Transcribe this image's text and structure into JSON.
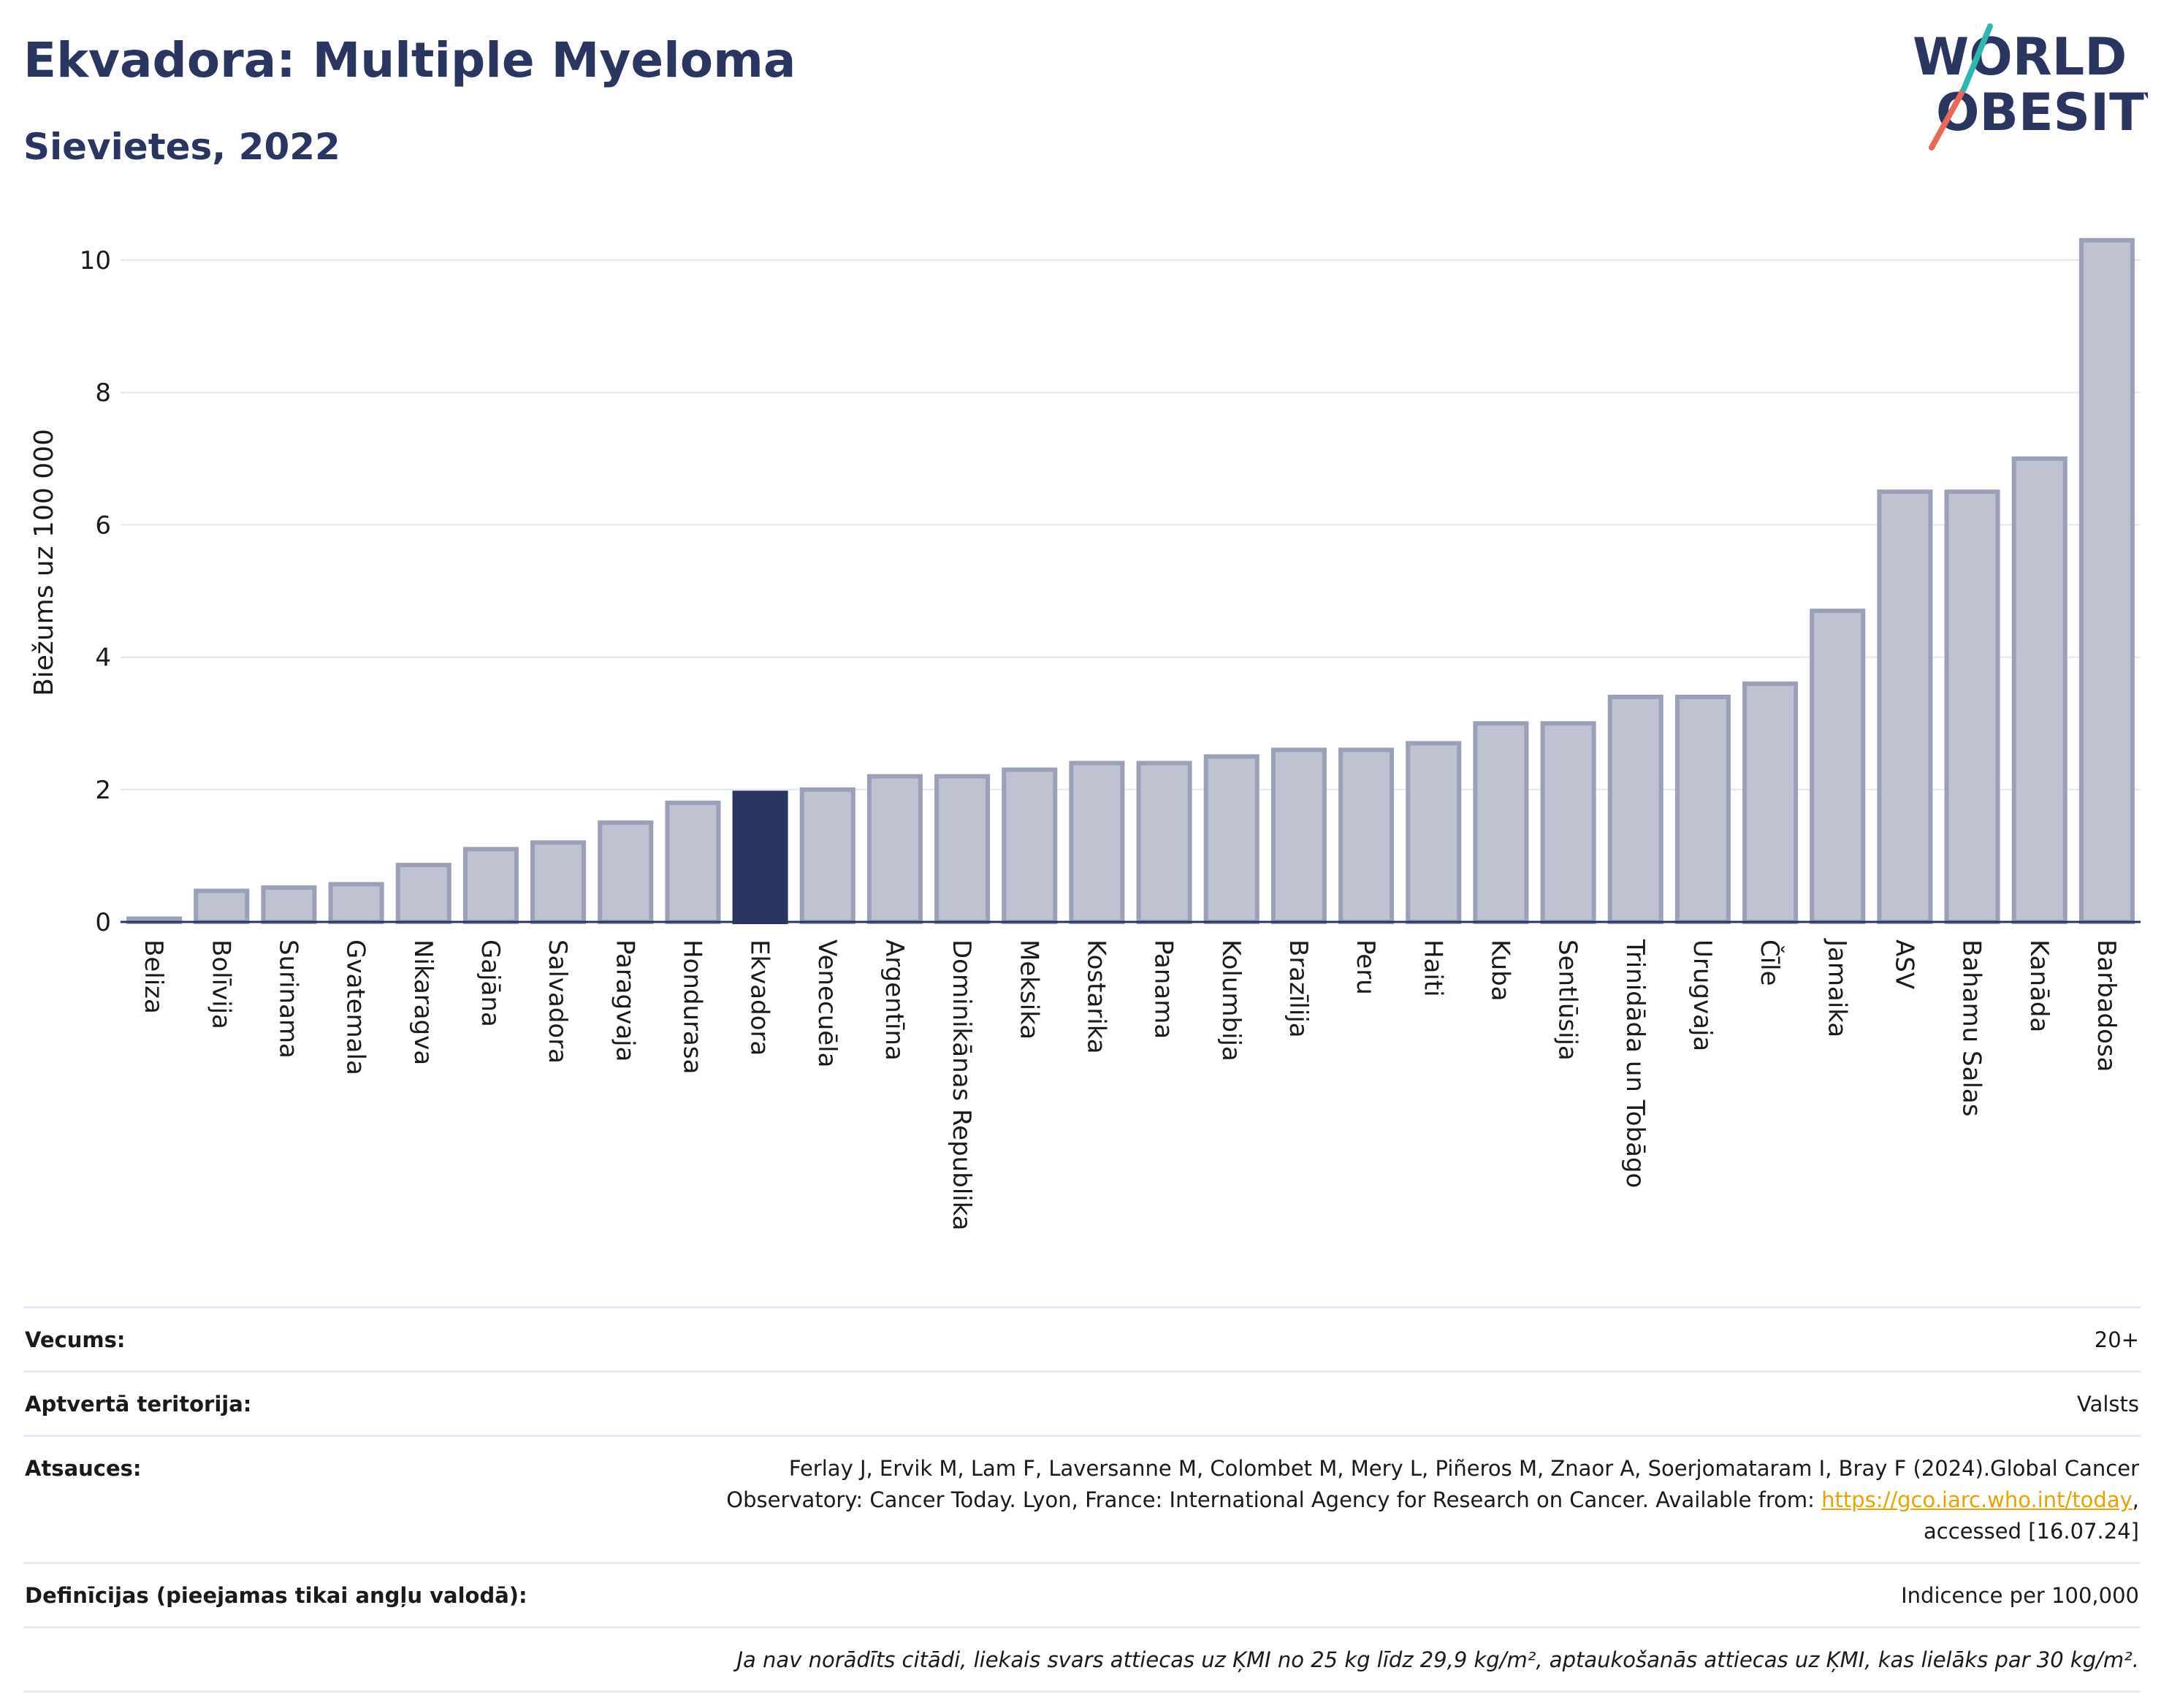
{
  "header": {
    "title": "Ekvadora: Multiple Myeloma",
    "subtitle": "Sievietes, 2022"
  },
  "logo": {
    "line1": "WORLD",
    "line2": "OBESITY"
  },
  "chart_data": {
    "type": "bar",
    "ylabel": "Biežums uz 100 000",
    "ylim": [
      0,
      10.6
    ],
    "yticks": [
      0,
      2,
      4,
      6,
      8,
      10
    ],
    "grid": true,
    "highlight": "Ekvadora",
    "categories": [
      "Beliza",
      "Bolīvija",
      "Surinama",
      "Gvatemala",
      "Nikaragva",
      "Gajāna",
      "Salvadora",
      "Paragvaja",
      "Hondurasa",
      "Ekvadora",
      "Venecuēla",
      "Argentīna",
      "Dominikānas Republika",
      "Meksika",
      "Kostarika",
      "Panama",
      "Kolumbija",
      "Brazīlija",
      "Peru",
      "Haiti",
      "Kuba",
      "Sentlūsija",
      "Trinidāda un Tobāgo",
      "Urugvaja",
      "Čīle",
      "Jamaika",
      "ASV",
      "Bahamu Salas",
      "Kanāda",
      "Barbadosa"
    ],
    "values": [
      0.05,
      0.47,
      0.52,
      0.57,
      0.86,
      1.1,
      1.2,
      1.5,
      1.8,
      1.95,
      2.0,
      2.2,
      2.2,
      2.3,
      2.4,
      2.4,
      2.5,
      2.6,
      2.6,
      2.7,
      3.0,
      3.0,
      3.4,
      3.4,
      3.6,
      4.7,
      6.5,
      6.5,
      7.0,
      10.3
    ],
    "colors": {
      "bar": "#bfc2d0",
      "bar_border": "#9aa0b8",
      "highlight": "#2a3560",
      "grid": "#e3e6ee",
      "axis": "#2a3560"
    }
  },
  "meta": {
    "age_label": "Vecums:",
    "age_value": "20+",
    "territory_label": "Aptvertā teritorija:",
    "territory_value": "Valsts",
    "refs_label": "Atsauces:",
    "refs_text1": "Ferlay J, Ervik M, Lam F, Laversanne M, Colombet M, Mery L, Piñeros M, Znaor A, Soerjomataram I, Bray F (2024).Global Cancer",
    "refs_text2": "Observatory: Cancer Today. Lyon, France: International Agency for Research on Cancer. Available from: ",
    "refs_link": "https://gco.iarc.who.int/today",
    "refs_text3": ",",
    "refs_text4": "accessed [16.07.24]",
    "defs_label": "Definīcijas (pieejamas tikai angļu valodā):",
    "defs_value": "Indicence per 100,000",
    "note": "Ja nav norādīts citādi, liekais svars attiecas uz ĶMI no 25 kg līdz 29,9 kg/m², aptaukošanās attiecas uz ĶMI, kas lielāks par 30 kg/m²."
  }
}
